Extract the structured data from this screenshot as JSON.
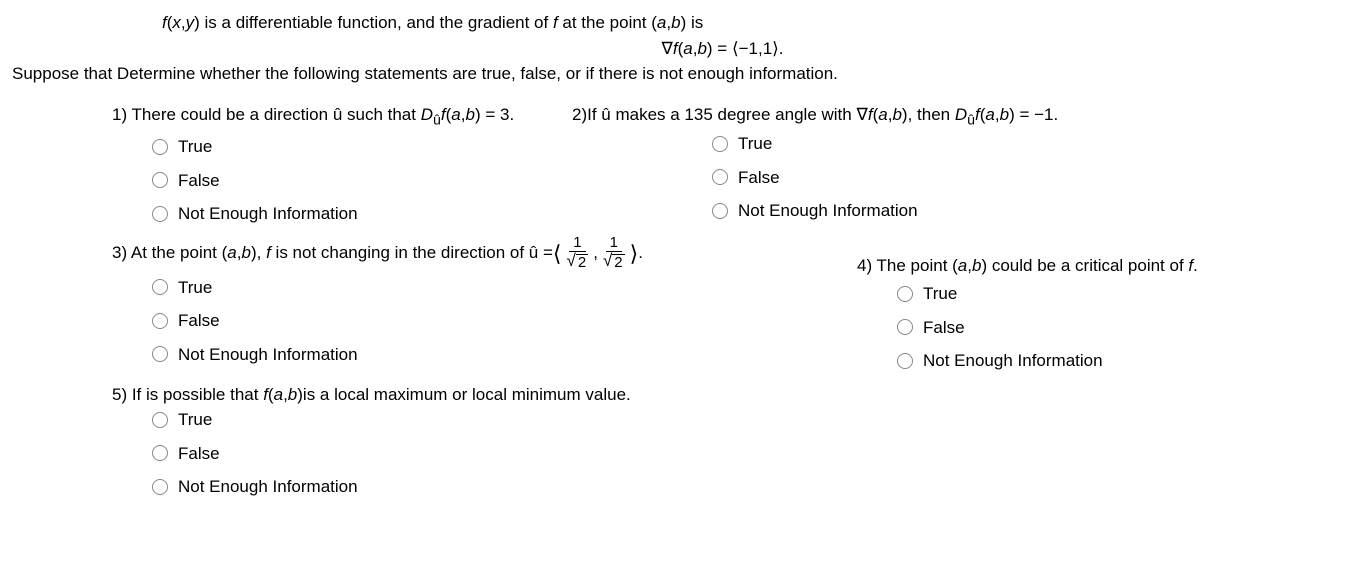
{
  "intro": {
    "line1_a": "f",
    "line1_b": "(",
    "line1_c": "x",
    "line1_d": ",",
    "line1_e": "y",
    "line1_f": ") is a differentiable function, and the gradient of ",
    "line1_g": "f",
    "line1_h": " at the point (",
    "line1_i": "a",
    "line1_j": ",",
    "line1_k": "b",
    "line1_l": ") is",
    "line2_a": "∇",
    "line2_b": "f",
    "line2_c": "(",
    "line2_d": "a",
    "line2_e": ",",
    "line2_f": "b",
    "line2_g": ") = ⟨−1,1⟩.",
    "line3": "Suppose that  Determine whether the following statements are true, false, or if there is not enough information."
  },
  "q1": {
    "text_a": "1) There could be a direction û such that ",
    "text_b": "D",
    "text_c": "û",
    "text_d": "f",
    "text_e": "(",
    "text_f": "a",
    "text_g": ",",
    "text_h": "b",
    "text_i": ") = 3."
  },
  "q2": {
    "text_a": "2)If û makes a 135 degree angle with ∇",
    "text_b": "f",
    "text_c": "(",
    "text_d": "a",
    "text_e": ",",
    "text_f": "b",
    "text_g": "), then ",
    "text_h": "D",
    "text_i": "û",
    "text_j": "f",
    "text_k": "(",
    "text_l": "a",
    "text_m": ",",
    "text_n": "b",
    "text_o": ") = −1."
  },
  "q3": {
    "text_a": "3) At the point (",
    "text_b": "a",
    "text_c": ",",
    "text_d": "b",
    "text_e": "), ",
    "text_f": "f",
    "text_g": " is not changing in the direction of û = ",
    "bracket_l": "⟨",
    "num1": "1",
    "den_sqrt": "2",
    "comma": ", ",
    "num2": "1",
    "bracket_r": "⟩",
    "period": "."
  },
  "q4": {
    "text_a": "4) The point (",
    "text_b": "a",
    "text_c": ",",
    "text_d": "b",
    "text_e": ") could be a critical point of ",
    "text_f": "f",
    "text_g": "."
  },
  "q5": {
    "text_a": "5) If is possible that ",
    "text_b": "f",
    "text_c": "(",
    "text_d": "a",
    "text_e": ",",
    "text_f": "b",
    "text_g": ")is a local maximum or local minimum value."
  },
  "options": {
    "true": "True",
    "false": "False",
    "nei": "Not Enough Information"
  }
}
